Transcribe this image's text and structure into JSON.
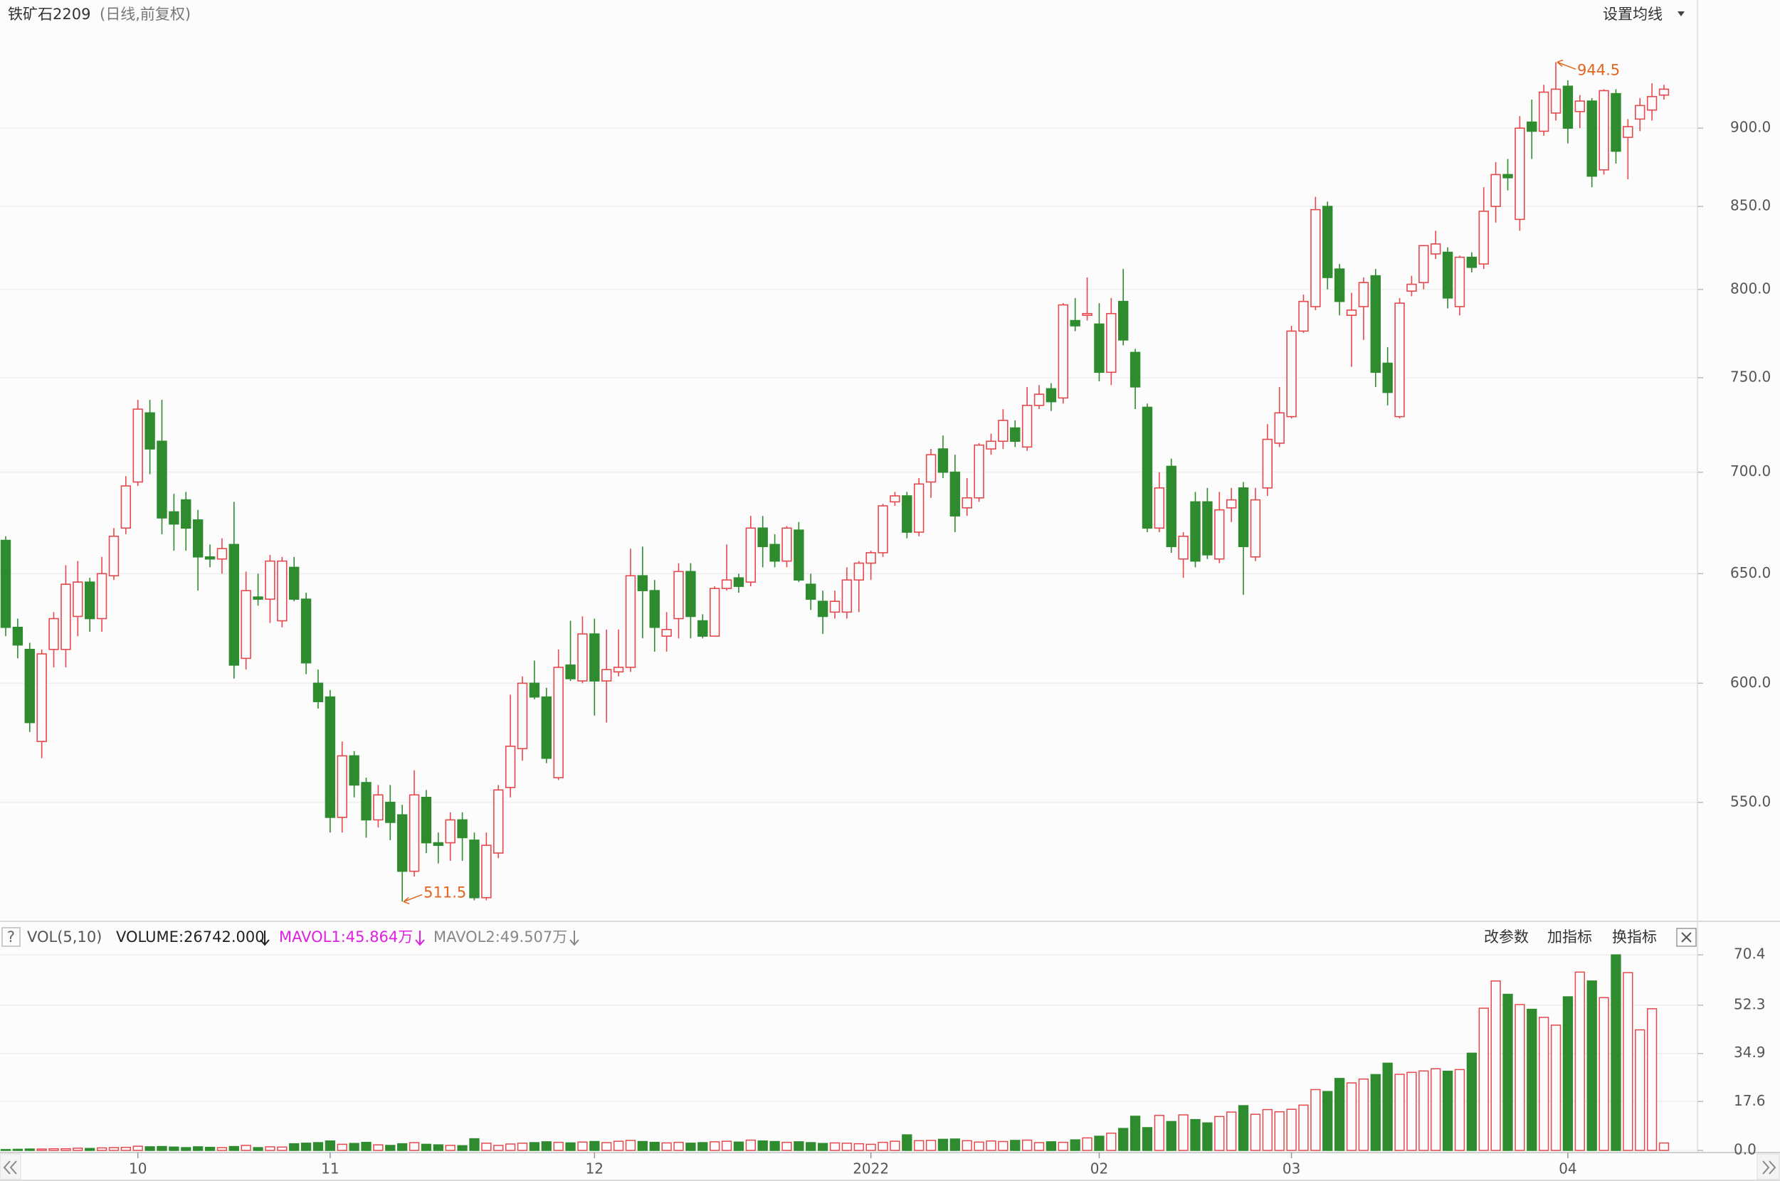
{
  "chart_data": [
    {
      "type": "candlestick",
      "title": "铁矿石2209",
      "subtitle": "(日线,前复权)",
      "button": "设置均线",
      "open": [
        666,
        625,
        615,
        575,
        615,
        615,
        630,
        646,
        629,
        649,
        672,
        695,
        731,
        716,
        680,
        686,
        676,
        658,
        657,
        664,
        611,
        639,
        638,
        628,
        653,
        638,
        600,
        594,
        544,
        569,
        558,
        543,
        550,
        545,
        523,
        552,
        534,
        534,
        543,
        535,
        513,
        530,
        556,
        572,
        600,
        594,
        560,
        608,
        601,
        622,
        601,
        605,
        607,
        649,
        642,
        621,
        629,
        651,
        628,
        621,
        643,
        648,
        646,
        672,
        664,
        656,
        671,
        645,
        637,
        632,
        632,
        647,
        655,
        660,
        685,
        688,
        670,
        695,
        712,
        700,
        682,
        687,
        712,
        716,
        723,
        713,
        735,
        744,
        739,
        782,
        785,
        780,
        753,
        793,
        764,
        734,
        672,
        703,
        657,
        685,
        685,
        657,
        682,
        692,
        658,
        692,
        715,
        729,
        776,
        790,
        850,
        812,
        785,
        790,
        808,
        758,
        729,
        799,
        804,
        821,
        822,
        790,
        819,
        815,
        850,
        870,
        842,
        904,
        898,
        910,
        928,
        911,
        918,
        873,
        923,
        894,
        906,
        912,
        922
      ],
      "high": [
        668,
        629,
        618,
        615,
        632,
        654,
        656,
        648,
        658,
        672,
        698,
        738,
        738,
        738,
        689,
        690,
        681,
        664,
        667,
        685,
        651,
        650,
        659,
        658,
        658,
        641,
        606,
        597,
        575,
        571,
        560,
        557,
        557,
        549,
        563,
        555,
        538,
        546,
        546,
        538,
        538,
        557,
        595,
        603,
        610,
        598,
        615,
        628,
        630,
        629,
        624,
        624,
        662,
        663,
        647,
        632,
        655,
        655,
        631,
        644,
        664,
        650,
        678,
        678,
        669,
        673,
        675,
        650,
        642,
        642,
        653,
        656,
        661,
        684,
        690,
        690,
        697,
        712,
        719,
        709,
        697,
        715,
        720,
        733,
        727,
        745,
        746,
        747,
        792,
        795,
        807,
        792,
        795,
        812,
        766,
        736,
        700,
        707,
        670,
        690,
        692,
        690,
        692,
        695,
        692,
        725,
        745,
        779,
        797,
        856,
        853,
        815,
        798,
        807,
        812,
        767,
        795,
        808,
        826,
        835,
        825,
        820,
        822,
        862,
        878,
        880,
        908,
        919,
        929,
        944.5,
        932,
        922,
        920,
        926,
        926,
        906,
        920,
        930,
        929
      ],
      "low": [
        621,
        611,
        579,
        568,
        607,
        607,
        621,
        623,
        623,
        647,
        669,
        693,
        699,
        669,
        661,
        661,
        642,
        653,
        650,
        602,
        606,
        635,
        627,
        625,
        637,
        604,
        589,
        538,
        538,
        552,
        536,
        540,
        535,
        511.5,
        521,
        530,
        526,
        527,
        527,
        512,
        512,
        528,
        552,
        567,
        593,
        566,
        559,
        601,
        600,
        586,
        583,
        603,
        605,
        620,
        614,
        614,
        620,
        620,
        620,
        621,
        642,
        641,
        644,
        653,
        653,
        653,
        646,
        633,
        622,
        629,
        629,
        632,
        647,
        658,
        683,
        667,
        668,
        687,
        697,
        670,
        678,
        685,
        709,
        712,
        713,
        711,
        733,
        732,
        736,
        776,
        782,
        748,
        746,
        768,
        733,
        670,
        670,
        660,
        648,
        653,
        657,
        655,
        675,
        640,
        656,
        688,
        713,
        728,
        775,
        788,
        800,
        785,
        756,
        771,
        745,
        735,
        728,
        796,
        800,
        818,
        789,
        785,
        810,
        812,
        840,
        860,
        835,
        880,
        895,
        905,
        890,
        900,
        862,
        870,
        877,
        867,
        898,
        905,
        919
      ],
      "close": [
        625,
        617,
        583,
        613,
        629,
        645,
        646,
        629,
        650,
        668,
        693,
        733,
        712,
        677,
        674,
        672,
        658,
        657,
        662,
        608,
        642,
        638,
        656,
        656,
        638,
        609,
        592,
        544,
        569,
        557,
        543,
        553,
        542,
        523,
        553,
        534,
        533,
        543,
        536,
        513,
        533,
        555,
        573,
        600,
        594,
        568,
        607,
        602,
        622,
        601,
        606,
        607,
        649,
        642,
        625,
        624,
        651,
        630,
        621,
        643,
        647,
        644,
        672,
        663,
        656,
        672,
        647,
        638,
        630,
        637,
        647,
        655,
        660,
        683,
        688,
        670,
        694,
        709,
        700,
        678,
        687,
        714,
        716,
        727,
        716,
        735,
        741,
        737,
        791,
        779,
        786,
        753,
        786,
        771,
        745,
        672,
        692,
        663,
        668,
        656,
        659,
        681,
        686,
        663,
        686,
        717,
        731,
        776,
        793,
        848,
        807,
        793,
        788,
        804,
        753,
        742,
        792,
        803,
        826,
        827,
        795,
        819,
        813,
        847,
        870,
        868,
        900,
        898,
        924,
        926,
        900,
        918,
        869,
        925,
        885,
        901,
        915,
        921,
        926
      ],
      "ylim": [
        505,
        968
      ],
      "yticks": [
        {
          "value": 550,
          "label": "550.0"
        },
        {
          "value": 600,
          "label": "600.0"
        },
        {
          "value": 650,
          "label": "650.0"
        },
        {
          "value": 700,
          "label": "700.0"
        },
        {
          "value": 750,
          "label": "750.0"
        },
        {
          "value": 800,
          "label": "800.0"
        },
        {
          "value": 850,
          "label": "850.0"
        },
        {
          "value": 900,
          "label": "900.0"
        }
      ],
      "log_scale": true,
      "grid": true,
      "up_color": "#e5484d",
      "down_color": "#2e8b2e",
      "annotation_color": "#e0661f"
    },
    {
      "type": "bar",
      "title": "VOL(5,10)",
      "help": "?",
      "legend": [
        "VOLUME:26742.000",
        "MAVOL1:45.864万",
        "MAVOL2:49.507万"
      ],
      "legend_colors": [
        "#222222",
        "#e020e0",
        "#888888"
      ],
      "buttons": [
        "改参数",
        "加指标",
        "换指标"
      ],
      "values": [
        0.3,
        0.4,
        0.5,
        0.5,
        0.6,
        0.6,
        0.8,
        0.7,
        0.9,
        1.0,
        1.1,
        1.5,
        1.3,
        1.4,
        1.2,
        1.0,
        1.3,
        1.1,
        1.0,
        1.4,
        1.8,
        1.0,
        1.3,
        1.2,
        2.4,
        2.6,
        2.8,
        3.4,
        2.2,
        2.5,
        2.9,
        2.0,
        1.8,
        2.4,
        2.8,
        2.2,
        2.0,
        1.8,
        1.7,
        4.2,
        2.6,
        1.8,
        2.3,
        2.6,
        2.8,
        3.1,
        2.9,
        2.7,
        3.0,
        3.2,
        2.8,
        3.3,
        3.6,
        3.2,
        2.9,
        2.7,
        2.9,
        2.6,
        2.8,
        3.1,
        3.3,
        3.0,
        3.7,
        3.4,
        3.2,
        2.9,
        3.1,
        2.8,
        2.5,
        2.7,
        2.6,
        2.4,
        2.2,
        2.9,
        3.3,
        5.6,
        3.5,
        3.6,
        4.0,
        4.1,
        3.5,
        3.0,
        3.4,
        3.2,
        3.6,
        3.7,
        2.8,
        3.1,
        2.9,
        3.8,
        4.5,
        5.1,
        6.2,
        7.9,
        12.3,
        8.2,
        12.6,
        10.4,
        12.8,
        11.1,
        9.9,
        12.2,
        13.8,
        16.1,
        13.0,
        14.7,
        13.9,
        14.8,
        16.3,
        21.9,
        21.2,
        25.9,
        24.3,
        25.7,
        27.3,
        31.4,
        27.4,
        28.1,
        28.6,
        29.4,
        28.5,
        29.1,
        35.0,
        51.2,
        61.0,
        56.2,
        52.5,
        50.8,
        47.9,
        45.1,
        55.3,
        64.2,
        61.0,
        55.0,
        70.4,
        64.0,
        43.4,
        51.0,
        2.6742
      ],
      "ylim": [
        0,
        73
      ],
      "yticks": [
        {
          "value": 0,
          "label": "0.0"
        },
        17.6,
        34.9,
        52.3,
        70.4
      ],
      "xticks": [
        {
          "value": 11,
          "label": "10"
        },
        {
          "value": 27,
          "label": "11"
        },
        {
          "value": 49,
          "label": "12"
        },
        {
          "value": 72,
          "label": "2022"
        },
        {
          "value": 91,
          "label": "02"
        },
        {
          "value": 107,
          "label": "03"
        },
        {
          "value": 130,
          "label": "04"
        }
      ],
      "grid": true
    }
  ]
}
